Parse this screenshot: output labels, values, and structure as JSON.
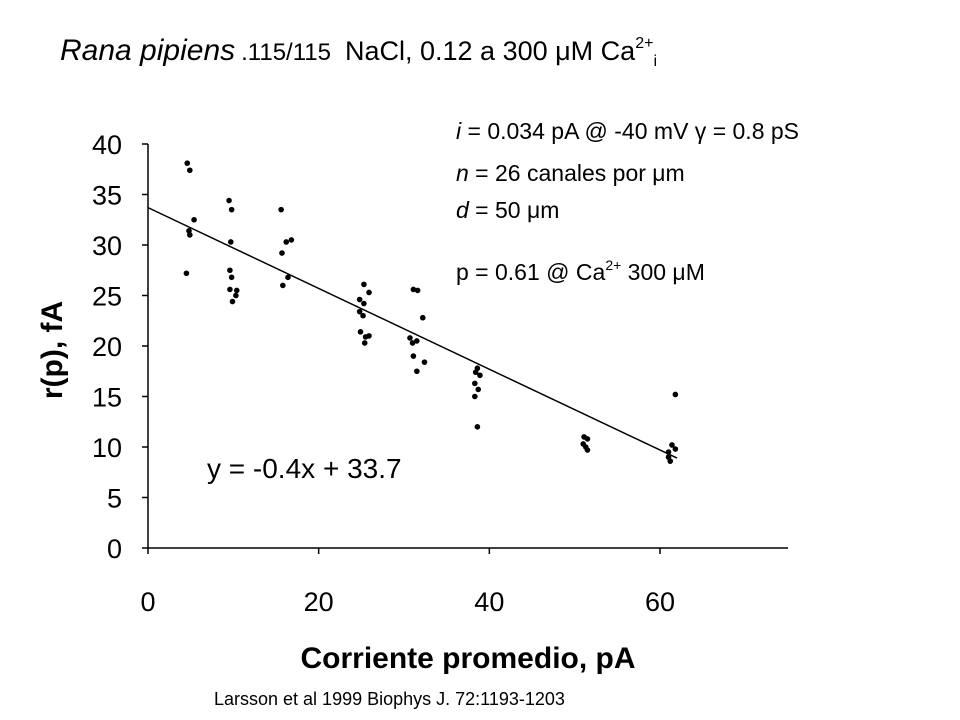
{
  "title": {
    "species": "Rana pipiens",
    "solution": ".115/115",
    "condition_prefix": "NaCl, 0.12 a 300 μM Ca",
    "condition_sup": "2+",
    "condition_sub": "i"
  },
  "info": {
    "line1_i": "i",
    "line1_rest": " = 0.034 pA @ -40 mV γ = 0.8 pS",
    "line2_n": "n",
    "line2_rest": " = 26 canales por μm",
    "line3_d": "d",
    "line3_rest": " = 50 μm",
    "line4_prefix": "p = 0.61 @ Ca",
    "line4_sup": "2+",
    "line4_suffix": " 300 μM"
  },
  "citation": "Larsson et al 1999 Biophys J. 72:1193-1203",
  "chart_data": {
    "type": "scatter",
    "xlabel": "Corriente promedio, pA",
    "ylabel": "r(p), fA",
    "xlim": [
      0,
      75
    ],
    "ylim": [
      0,
      40
    ],
    "xticks": [
      "0",
      "20",
      "40",
      "60"
    ],
    "yticks": [
      "0",
      "5",
      "10",
      "15",
      "20",
      "25",
      "30",
      "35",
      "40"
    ],
    "fit": {
      "label": "y = -0.4x + 33.7",
      "slope": -0.4,
      "intercept": 33.7,
      "x_range": [
        0,
        62
      ]
    },
    "points": [
      [
        4.6,
        38.1
      ],
      [
        4.9,
        37.4
      ],
      [
        5.4,
        32.5
      ],
      [
        4.8,
        31.4
      ],
      [
        4.9,
        31.0
      ],
      [
        4.5,
        27.2
      ],
      [
        9.5,
        34.4
      ],
      [
        9.8,
        33.5
      ],
      [
        9.7,
        30.3
      ],
      [
        9.6,
        27.5
      ],
      [
        9.8,
        26.8
      ],
      [
        9.6,
        25.6
      ],
      [
        10.4,
        25.5
      ],
      [
        10.3,
        25.0
      ],
      [
        9.9,
        24.4
      ],
      [
        15.6,
        33.5
      ],
      [
        16.2,
        30.3
      ],
      [
        16.8,
        30.5
      ],
      [
        15.7,
        29.2
      ],
      [
        16.4,
        26.8
      ],
      [
        15.8,
        26.0
      ],
      [
        25.3,
        26.1
      ],
      [
        25.9,
        25.3
      ],
      [
        24.8,
        24.6
      ],
      [
        25.3,
        24.2
      ],
      [
        24.8,
        23.4
      ],
      [
        25.2,
        23.0
      ],
      [
        24.9,
        21.4
      ],
      [
        25.9,
        21.0
      ],
      [
        25.5,
        20.9
      ],
      [
        25.4,
        20.3
      ],
      [
        31.1,
        25.6
      ],
      [
        31.6,
        25.5
      ],
      [
        32.2,
        22.8
      ],
      [
        30.7,
        20.8
      ],
      [
        31.5,
        20.5
      ],
      [
        31.0,
        20.3
      ],
      [
        31.1,
        19.0
      ],
      [
        32.4,
        18.4
      ],
      [
        31.5,
        17.5
      ],
      [
        38.6,
        17.8
      ],
      [
        38.4,
        17.4
      ],
      [
        38.9,
        17.1
      ],
      [
        38.3,
        16.3
      ],
      [
        38.7,
        15.7
      ],
      [
        38.3,
        15.0
      ],
      [
        38.6,
        12.0
      ],
      [
        51.1,
        11.0
      ],
      [
        51.5,
        10.8
      ],
      [
        51.0,
        10.3
      ],
      [
        51.3,
        10.0
      ],
      [
        51.5,
        9.7
      ],
      [
        61.8,
        15.2
      ],
      [
        61.4,
        10.2
      ],
      [
        61.8,
        9.8
      ],
      [
        61.0,
        9.5
      ],
      [
        61.0,
        9.0
      ],
      [
        61.2,
        8.6
      ]
    ]
  }
}
